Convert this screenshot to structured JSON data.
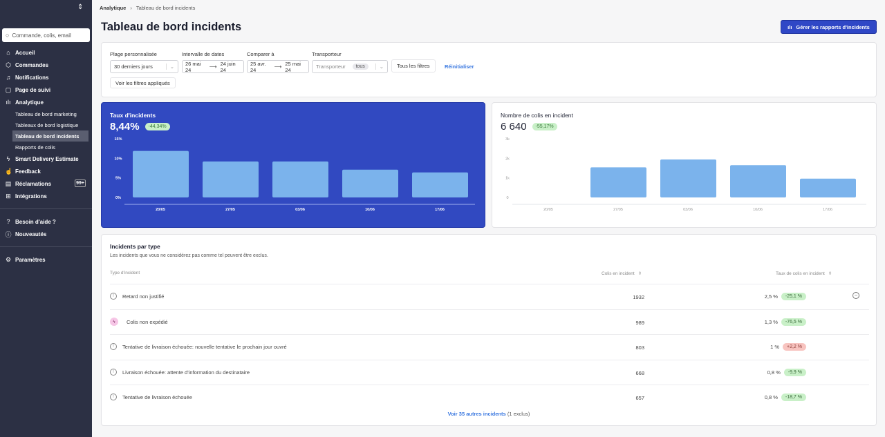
{
  "sidebar": {
    "search_placeholder": "Commande, colis, email",
    "items": [
      {
        "label": "Accueil",
        "icon": "home-icon"
      },
      {
        "label": "Commandes",
        "icon": "box-icon"
      },
      {
        "label": "Notifications",
        "icon": "bell-icon"
      },
      {
        "label": "Page de suivi",
        "icon": "tracking-page-icon"
      },
      {
        "label": "Analytique",
        "icon": "bar-chart-icon"
      }
    ],
    "analytics_sub": [
      {
        "label": "Tableau de bord marketing"
      },
      {
        "label": "Tableaux de bord logistique"
      },
      {
        "label": "Tableau de bord incidents",
        "active": true
      },
      {
        "label": "Rapports de colis"
      }
    ],
    "items2": [
      {
        "label": "Smart Delivery Estimate",
        "icon": "lightning-icon"
      },
      {
        "label": "Feedback",
        "icon": "thumbs-up-icon"
      },
      {
        "label": "Réclamations",
        "icon": "archive-icon",
        "badge": "99+"
      },
      {
        "label": "Intégrations",
        "icon": "integrations-icon"
      }
    ],
    "help": {
      "label": "Besoin d'aide ?"
    },
    "news": {
      "label": "Nouveautés"
    },
    "settings": {
      "label": "Paramètres"
    }
  },
  "breadcrumb": {
    "root": "Analytique",
    "current": "Tableau de bord incidents"
  },
  "page_title": "Tableau de bord incidents",
  "manage_button": "Gérer les rapports d'incidents",
  "filters": {
    "range_label": "Plage personnalisée",
    "range_value": "30 derniers jours",
    "dates_label": "Intervalle de dates",
    "dates_from": "26 mai 24",
    "dates_to": "24 juin 24",
    "compare_label": "Comparer à",
    "compare_from": "25 avr. 24",
    "compare_to": "25 mai 24",
    "carrier_label": "Transporteur",
    "carrier_placeholder": "Transporteur",
    "carrier_value": "tous",
    "all_filters": "Tous les filtres",
    "reset": "Réinitialiser",
    "applied": "Voir les filtres appliqués"
  },
  "colors": {
    "accent": "#3149c1",
    "bar": "#7bb3ec",
    "positive_bg": "#c9f0c8",
    "negative_bg": "#f8c4c0",
    "link": "#3a78e0"
  },
  "chart_data": [
    {
      "type": "bar",
      "title": "Taux d'incidents",
      "headline": "8,44%",
      "delta": "-44,34%",
      "categories": [
        "20/05",
        "27/05",
        "03/06",
        "10/06",
        "17/06"
      ],
      "values": [
        11.9,
        9.2,
        9.2,
        7.1,
        6.4
      ],
      "yticks": [
        "0%",
        "5%",
        "10%",
        "15%"
      ],
      "ylim": [
        0,
        15
      ]
    },
    {
      "type": "bar",
      "title": "Nombre de colis en incident",
      "headline": "6 640",
      "delta": "-55,17%",
      "categories": [
        "20/05",
        "27/05",
        "03/06",
        "10/06",
        "17/06"
      ],
      "values": [
        0,
        1540,
        1940,
        1650,
        960
      ],
      "yticks": [
        "0",
        "1k",
        "2k",
        "3k"
      ],
      "ylim": [
        0,
        3000
      ]
    }
  ],
  "table": {
    "title": "Incidents par type",
    "subtitle": "Les incidents que vous ne considérez pas comme tel peuvent être exclus.",
    "columns": [
      "Type d'incident",
      "Colis en incident",
      "Taux de colis en incident"
    ],
    "rows": [
      {
        "type": "Retard non justifié",
        "count": "1932",
        "rate": "2,5 %",
        "delta": "-25,1 %",
        "trend": "down",
        "icon": "info-circle-icon"
      },
      {
        "type": "Colis non expédié",
        "count": "989",
        "rate": "1,3 %",
        "delta": "-76,5 %",
        "trend": "down",
        "icon": "lightning-icon"
      },
      {
        "type": "Tentative de livraison échouée: nouvelle tentative le prochain jour ouvré",
        "count": "803",
        "rate": "1 %",
        "delta": "+2,2 %",
        "trend": "up",
        "icon": "info-circle-icon"
      },
      {
        "type": "Livraison échouée: attente d'information du destinataire",
        "count": "668",
        "rate": "0,8 %",
        "delta": "-9,9 %",
        "trend": "down",
        "icon": "info-circle-icon"
      },
      {
        "type": "Tentative de livraison échouée",
        "count": "657",
        "rate": "0,8 %",
        "delta": "-18,7 %",
        "trend": "down",
        "icon": "info-circle-icon"
      }
    ],
    "more_link": "Voir 35 autres incidents",
    "more_note": "(1 exclus)"
  }
}
